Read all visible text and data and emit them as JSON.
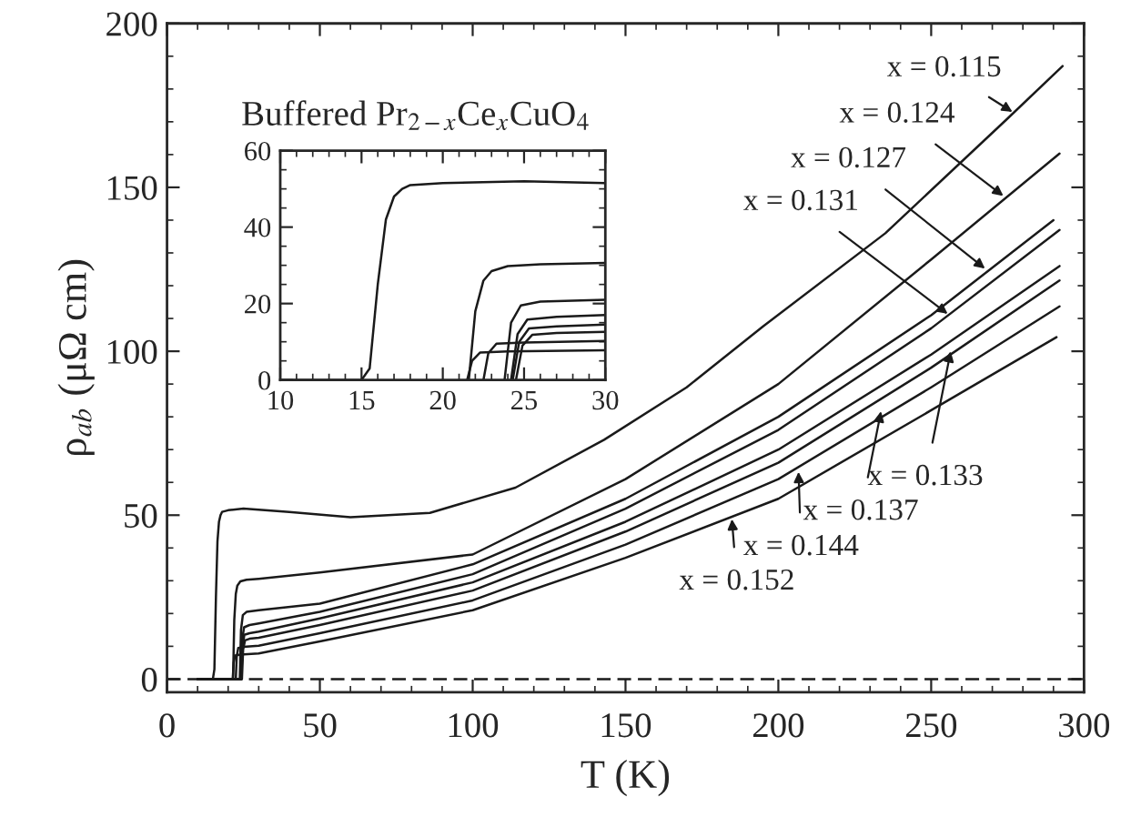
{
  "chart_data": [
    {
      "type": "line",
      "xlabel": "T (K)",
      "ylabel": "ρ$_{ab}$ (μΩ cm)",
      "xlim": [
        0,
        300
      ],
      "ylim": [
        -4,
        200
      ],
      "xticks": [
        0,
        50,
        100,
        150,
        200,
        250,
        300
      ],
      "yticks": [
        0,
        50,
        100,
        150,
        200
      ],
      "grid": false,
      "legend": false,
      "series": [
        {
          "color": "#1a1a1a",
          "x": [
            10,
            15,
            15.5,
            16,
            16.5,
            17,
            17.5,
            18,
            20,
            25,
            40,
            60,
            86,
            114,
            143,
            170,
            195,
            235,
            275,
            293
          ],
          "values": [
            0,
            0,
            3,
            25,
            42,
            48,
            50,
            51,
            51.5,
            52,
            51,
            49.4,
            50.7,
            58.4,
            73,
            89,
            107.6,
            136,
            171,
            187
          ]
        },
        {
          "color": "#1a1a1a",
          "x": [
            10,
            21.6,
            22,
            22.5,
            23,
            24,
            26,
            30,
            50,
            100,
            150,
            200,
            250,
            292
          ],
          "values": [
            0,
            0,
            18,
            26,
            28.5,
            29.8,
            30.3,
            30.6,
            32.5,
            38,
            61,
            90,
            128,
            160.3
          ]
        },
        {
          "color": "#1a1a1a",
          "x": [
            10,
            23.8,
            24.2,
            24.8,
            26,
            30,
            50,
            100,
            150,
            200,
            250,
            290
          ],
          "values": [
            0,
            0,
            15,
            19.5,
            20.5,
            21,
            23,
            35,
            55,
            80,
            111,
            140
          ]
        },
        {
          "color": "#1a1a1a",
          "x": [
            10,
            24.2,
            24.6,
            25.2,
            27,
            30,
            50,
            100,
            150,
            200,
            250,
            292
          ],
          "values": [
            0,
            0,
            12,
            15.8,
            16.5,
            17,
            20.5,
            32,
            52,
            76,
            107,
            137
          ]
        },
        {
          "color": "#1a1a1a",
          "x": [
            10,
            24.3,
            24.7,
            25.3,
            27,
            30,
            50,
            100,
            150,
            200,
            250,
            292
          ],
          "values": [
            0,
            0,
            10,
            13.5,
            14,
            14.5,
            18.5,
            29.5,
            48,
            70,
            99,
            126
          ]
        },
        {
          "color": "#1a1a1a",
          "x": [
            10,
            24.5,
            24.9,
            25.5,
            27,
            30,
            50,
            100,
            150,
            200,
            250,
            292
          ],
          "values": [
            0,
            0,
            9,
            11.8,
            12.3,
            12.6,
            16.5,
            27,
            45,
            66,
            95,
            121.6
          ]
        },
        {
          "color": "#1a1a1a",
          "x": [
            10,
            22.5,
            22.8,
            23.3,
            25,
            30,
            50,
            100,
            150,
            200,
            250,
            292
          ],
          "values": [
            0,
            0,
            7,
            9.5,
            9.8,
            10.2,
            14,
            24,
            41,
            61,
            89,
            113.7
          ]
        },
        {
          "color": "#1a1a1a",
          "x": [
            10,
            21.5,
            21.8,
            22.3,
            24,
            30,
            50,
            100,
            150,
            200,
            250,
            291
          ],
          "values": [
            0,
            0,
            5,
            7.2,
            7.5,
            7.8,
            11.5,
            21,
            37,
            55,
            82,
            104.3
          ]
        }
      ],
      "ref_lines": [
        {
          "axis": "y",
          "value": 0,
          "color": "#1a1a1a",
          "line_style": "dashed"
        }
      ],
      "annotations": [
        {
          "text": "x = 0.115",
          "x": 276.6,
          "y": 173
        },
        {
          "text": "x = 0.124",
          "x": 273.6,
          "y": 147.4
        },
        {
          "text": "x = 0.127",
          "x": 267.6,
          "y": 125.2
        },
        {
          "text": "x = 0.131",
          "x": 255.4,
          "y": 111.4
        },
        {
          "text": "x = 0.133",
          "x": 256.4,
          "y": 100
        },
        {
          "text": "x = 0.137",
          "x": 233.6,
          "y": 81.7
        },
        {
          "text": "x = 0.144",
          "x": 206.6,
          "y": 63.2
        },
        {
          "text": "x = 0.152",
          "x": 184.8,
          "y": 48.8
        }
      ]
    },
    {
      "type": "line",
      "title": "Buffered Pr$_{2−x}$Ce$_{x}$CuO$_{4}$",
      "xlim": [
        10,
        30
      ],
      "ylim": [
        0,
        60
      ],
      "xticks": [
        10,
        15,
        20,
        25,
        30
      ],
      "yticks": [
        0,
        20,
        40,
        60
      ],
      "grid": false,
      "legend": false,
      "series": [
        {
          "color": "#1a1a1a",
          "x": [
            10,
            15,
            15.5,
            16,
            16.5,
            17,
            17.5,
            18,
            20,
            25,
            30
          ],
          "values": [
            0,
            0,
            3,
            25,
            42,
            48,
            50,
            51,
            51.5,
            52,
            51.5
          ]
        },
        {
          "color": "#1a1a1a",
          "x": [
            21.6,
            22,
            22.5,
            23,
            24,
            26,
            30
          ],
          "values": [
            0,
            18,
            26,
            28.5,
            29.8,
            30.3,
            30.6
          ]
        },
        {
          "color": "#1a1a1a",
          "x": [
            23.8,
            24.2,
            24.8,
            26,
            30
          ],
          "values": [
            0,
            15,
            19.5,
            20.5,
            21
          ]
        },
        {
          "color": "#1a1a1a",
          "x": [
            24.2,
            24.6,
            25.2,
            27,
            30
          ],
          "values": [
            0,
            12,
            15.8,
            16.5,
            17
          ]
        },
        {
          "color": "#1a1a1a",
          "x": [
            24.3,
            24.7,
            25.3,
            27,
            30
          ],
          "values": [
            0,
            10,
            13.5,
            14,
            14.5
          ]
        },
        {
          "color": "#1a1a1a",
          "x": [
            24.5,
            24.9,
            25.5,
            27,
            30
          ],
          "values": [
            0,
            9,
            11.8,
            12.3,
            12.6
          ]
        },
        {
          "color": "#1a1a1a",
          "x": [
            22.5,
            22.8,
            23.3,
            25,
            30
          ],
          "values": [
            0,
            7,
            9.5,
            9.8,
            10.2
          ]
        },
        {
          "color": "#1a1a1a",
          "x": [
            21.5,
            21.8,
            22.3,
            24,
            30
          ],
          "values": [
            0,
            5,
            7.2,
            7.5,
            7.8
          ]
        }
      ]
    }
  ]
}
